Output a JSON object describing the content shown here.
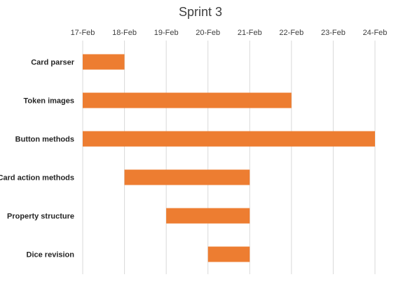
{
  "chart_data": {
    "type": "bar",
    "orientation": "horizontal-gantt",
    "title": "Sprint 3",
    "xlabel": "",
    "ylabel": "",
    "x_axis_position": "top",
    "x_ticks": [
      "17-Feb",
      "18-Feb",
      "19-Feb",
      "20-Feb",
      "21-Feb",
      "22-Feb",
      "23-Feb",
      "24-Feb"
    ],
    "xlim": [
      "17-Feb",
      "24-Feb"
    ],
    "grid": true,
    "legend": "none",
    "bar_color": "#ED7D31",
    "tasks": [
      {
        "name": "Card parser",
        "start": "17-Feb",
        "end": "18-Feb"
      },
      {
        "name": "Token images",
        "start": "17-Feb",
        "end": "22-Feb"
      },
      {
        "name": "Button methods",
        "start": "17-Feb",
        "end": "24-Feb"
      },
      {
        "name": "Card action methods",
        "start": "18-Feb",
        "end": "21-Feb"
      },
      {
        "name": "Property structure",
        "start": "19-Feb",
        "end": "21-Feb"
      },
      {
        "name": "Dice revision",
        "start": "20-Feb",
        "end": "21-Feb"
      }
    ]
  }
}
